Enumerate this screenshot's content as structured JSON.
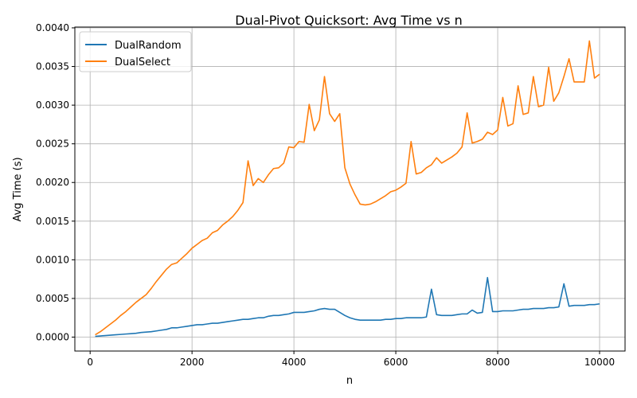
{
  "chart_data": {
    "type": "line",
    "title": "Dual-Pivot Quicksort: Avg Time vs n",
    "xlabel": "n",
    "ylabel": "Avg Time (s)",
    "xlim": [
      -300,
      10500
    ],
    "ylim": [
      -0.00018,
      0.00401
    ],
    "xticks": [
      0,
      2000,
      4000,
      6000,
      8000,
      10000
    ],
    "xtick_labels": [
      "0",
      "2000",
      "4000",
      "6000",
      "8000",
      "10000"
    ],
    "yticks": [
      0,
      0.0005,
      0.001,
      0.0015,
      0.002,
      0.0025,
      0.003,
      0.0035,
      0.004
    ],
    "ytick_labels": [
      "0.0000",
      "0.0005",
      "0.0010",
      "0.0015",
      "0.0020",
      "0.0025",
      "0.0030",
      "0.0035",
      "0.0040"
    ],
    "grid": true,
    "legend_position": "top-left",
    "series": [
      {
        "name": "DualRandom",
        "color": "#1f77b4",
        "x": [
          100,
          200,
          300,
          400,
          500,
          600,
          700,
          800,
          900,
          1000,
          1100,
          1200,
          1300,
          1400,
          1500,
          1600,
          1700,
          1800,
          1900,
          2000,
          2100,
          2200,
          2300,
          2400,
          2500,
          2600,
          2700,
          2800,
          2900,
          3000,
          3100,
          3200,
          3300,
          3400,
          3500,
          3600,
          3700,
          3800,
          3900,
          4000,
          4100,
          4200,
          4300,
          4400,
          4500,
          4600,
          4700,
          4800,
          4900,
          5000,
          5100,
          5200,
          5300,
          5400,
          5500,
          5600,
          5700,
          5800,
          5900,
          6000,
          6100,
          6200,
          6300,
          6400,
          6500,
          6600,
          6700,
          6800,
          6900,
          7000,
          7100,
          7200,
          7300,
          7400,
          7500,
          7600,
          7700,
          7800,
          7900,
          8000,
          8100,
          8200,
          8300,
          8400,
          8500,
          8600,
          8700,
          8800,
          8900,
          9000,
          9100,
          9200,
          9300,
          9400,
          9500,
          9600,
          9700,
          9800,
          9900,
          10000
        ],
        "y": [
          1e-05,
          1.5e-05,
          2e-05,
          2.5e-05,
          3e-05,
          3.5e-05,
          4e-05,
          4.5e-05,
          5e-05,
          6e-05,
          6.5e-05,
          7e-05,
          8e-05,
          9e-05,
          0.0001,
          0.00012,
          0.00012,
          0.00013,
          0.00014,
          0.00015,
          0.00016,
          0.00016,
          0.00017,
          0.00018,
          0.00018,
          0.00019,
          0.0002,
          0.00021,
          0.00022,
          0.00023,
          0.00023,
          0.00024,
          0.00025,
          0.00025,
          0.00027,
          0.00028,
          0.00028,
          0.00029,
          0.0003,
          0.00032,
          0.00032,
          0.00032,
          0.00033,
          0.00034,
          0.00036,
          0.00037,
          0.00036,
          0.00036,
          0.00032,
          0.00028,
          0.00025,
          0.00023,
          0.00022,
          0.00022,
          0.00022,
          0.00022,
          0.00022,
          0.00023,
          0.00023,
          0.00024,
          0.00024,
          0.00025,
          0.00025,
          0.00025,
          0.00025,
          0.00026,
          0.00062,
          0.00029,
          0.00028,
          0.00028,
          0.00028,
          0.00029,
          0.0003,
          0.0003,
          0.00035,
          0.00031,
          0.00032,
          0.00077,
          0.00033,
          0.00033,
          0.00034,
          0.00034,
          0.00034,
          0.00035,
          0.00036,
          0.00036,
          0.00037,
          0.00037,
          0.00037,
          0.00038,
          0.00038,
          0.00039,
          0.00069,
          0.0004,
          0.00041,
          0.00041,
          0.00041,
          0.00042,
          0.00042,
          0.00043
        ]
      },
      {
        "name": "DualSelect",
        "color": "#ff7f0e",
        "x": [
          100,
          200,
          300,
          400,
          500,
          600,
          700,
          800,
          900,
          1000,
          1100,
          1200,
          1300,
          1400,
          1500,
          1600,
          1700,
          1800,
          1900,
          2000,
          2100,
          2200,
          2300,
          2400,
          2500,
          2600,
          2700,
          2800,
          2900,
          3000,
          3100,
          3200,
          3300,
          3400,
          3500,
          3600,
          3700,
          3800,
          3900,
          4000,
          4100,
          4200,
          4300,
          4400,
          4500,
          4600,
          4700,
          4800,
          4900,
          5000,
          5100,
          5200,
          5300,
          5400,
          5500,
          5600,
          5700,
          5800,
          5900,
          6000,
          6100,
          6200,
          6300,
          6400,
          6500,
          6600,
          6700,
          6800,
          6900,
          7000,
          7100,
          7200,
          7300,
          7400,
          7500,
          7600,
          7700,
          7800,
          7900,
          8000,
          8100,
          8200,
          8300,
          8400,
          8500,
          8600,
          8700,
          8800,
          8900,
          9000,
          9100,
          9200,
          9300,
          9400,
          9500,
          9600,
          9700,
          9800,
          9900,
          10000
        ],
        "y": [
          3e-05,
          7e-05,
          0.00012,
          0.00017,
          0.00022,
          0.00028,
          0.00033,
          0.00039,
          0.00045,
          0.0005,
          0.00055,
          0.00063,
          0.00072,
          0.0008,
          0.00088,
          0.00094,
          0.00096,
          0.00102,
          0.00108,
          0.00115,
          0.0012,
          0.00125,
          0.00128,
          0.00135,
          0.00138,
          0.00145,
          0.0015,
          0.00156,
          0.00164,
          0.00174,
          0.00228,
          0.00196,
          0.00205,
          0.002,
          0.0021,
          0.00218,
          0.00219,
          0.00225,
          0.00246,
          0.00245,
          0.00253,
          0.00252,
          0.00301,
          0.00267,
          0.00281,
          0.00337,
          0.00289,
          0.00279,
          0.00289,
          0.00219,
          0.00198,
          0.00184,
          0.00172,
          0.00171,
          0.00172,
          0.00175,
          0.00179,
          0.00183,
          0.00188,
          0.0019,
          0.00194,
          0.00199,
          0.00253,
          0.00211,
          0.00213,
          0.00219,
          0.00223,
          0.00232,
          0.00225,
          0.00229,
          0.00233,
          0.00238,
          0.00246,
          0.0029,
          0.00251,
          0.00253,
          0.00256,
          0.00265,
          0.00262,
          0.00268,
          0.0031,
          0.00273,
          0.00276,
          0.00325,
          0.00288,
          0.0029,
          0.00337,
          0.00298,
          0.003,
          0.00349,
          0.00305,
          0.00316,
          0.00337,
          0.0036,
          0.0033,
          0.0033,
          0.0033,
          0.00383,
          0.00335,
          0.0034
        ]
      }
    ]
  }
}
